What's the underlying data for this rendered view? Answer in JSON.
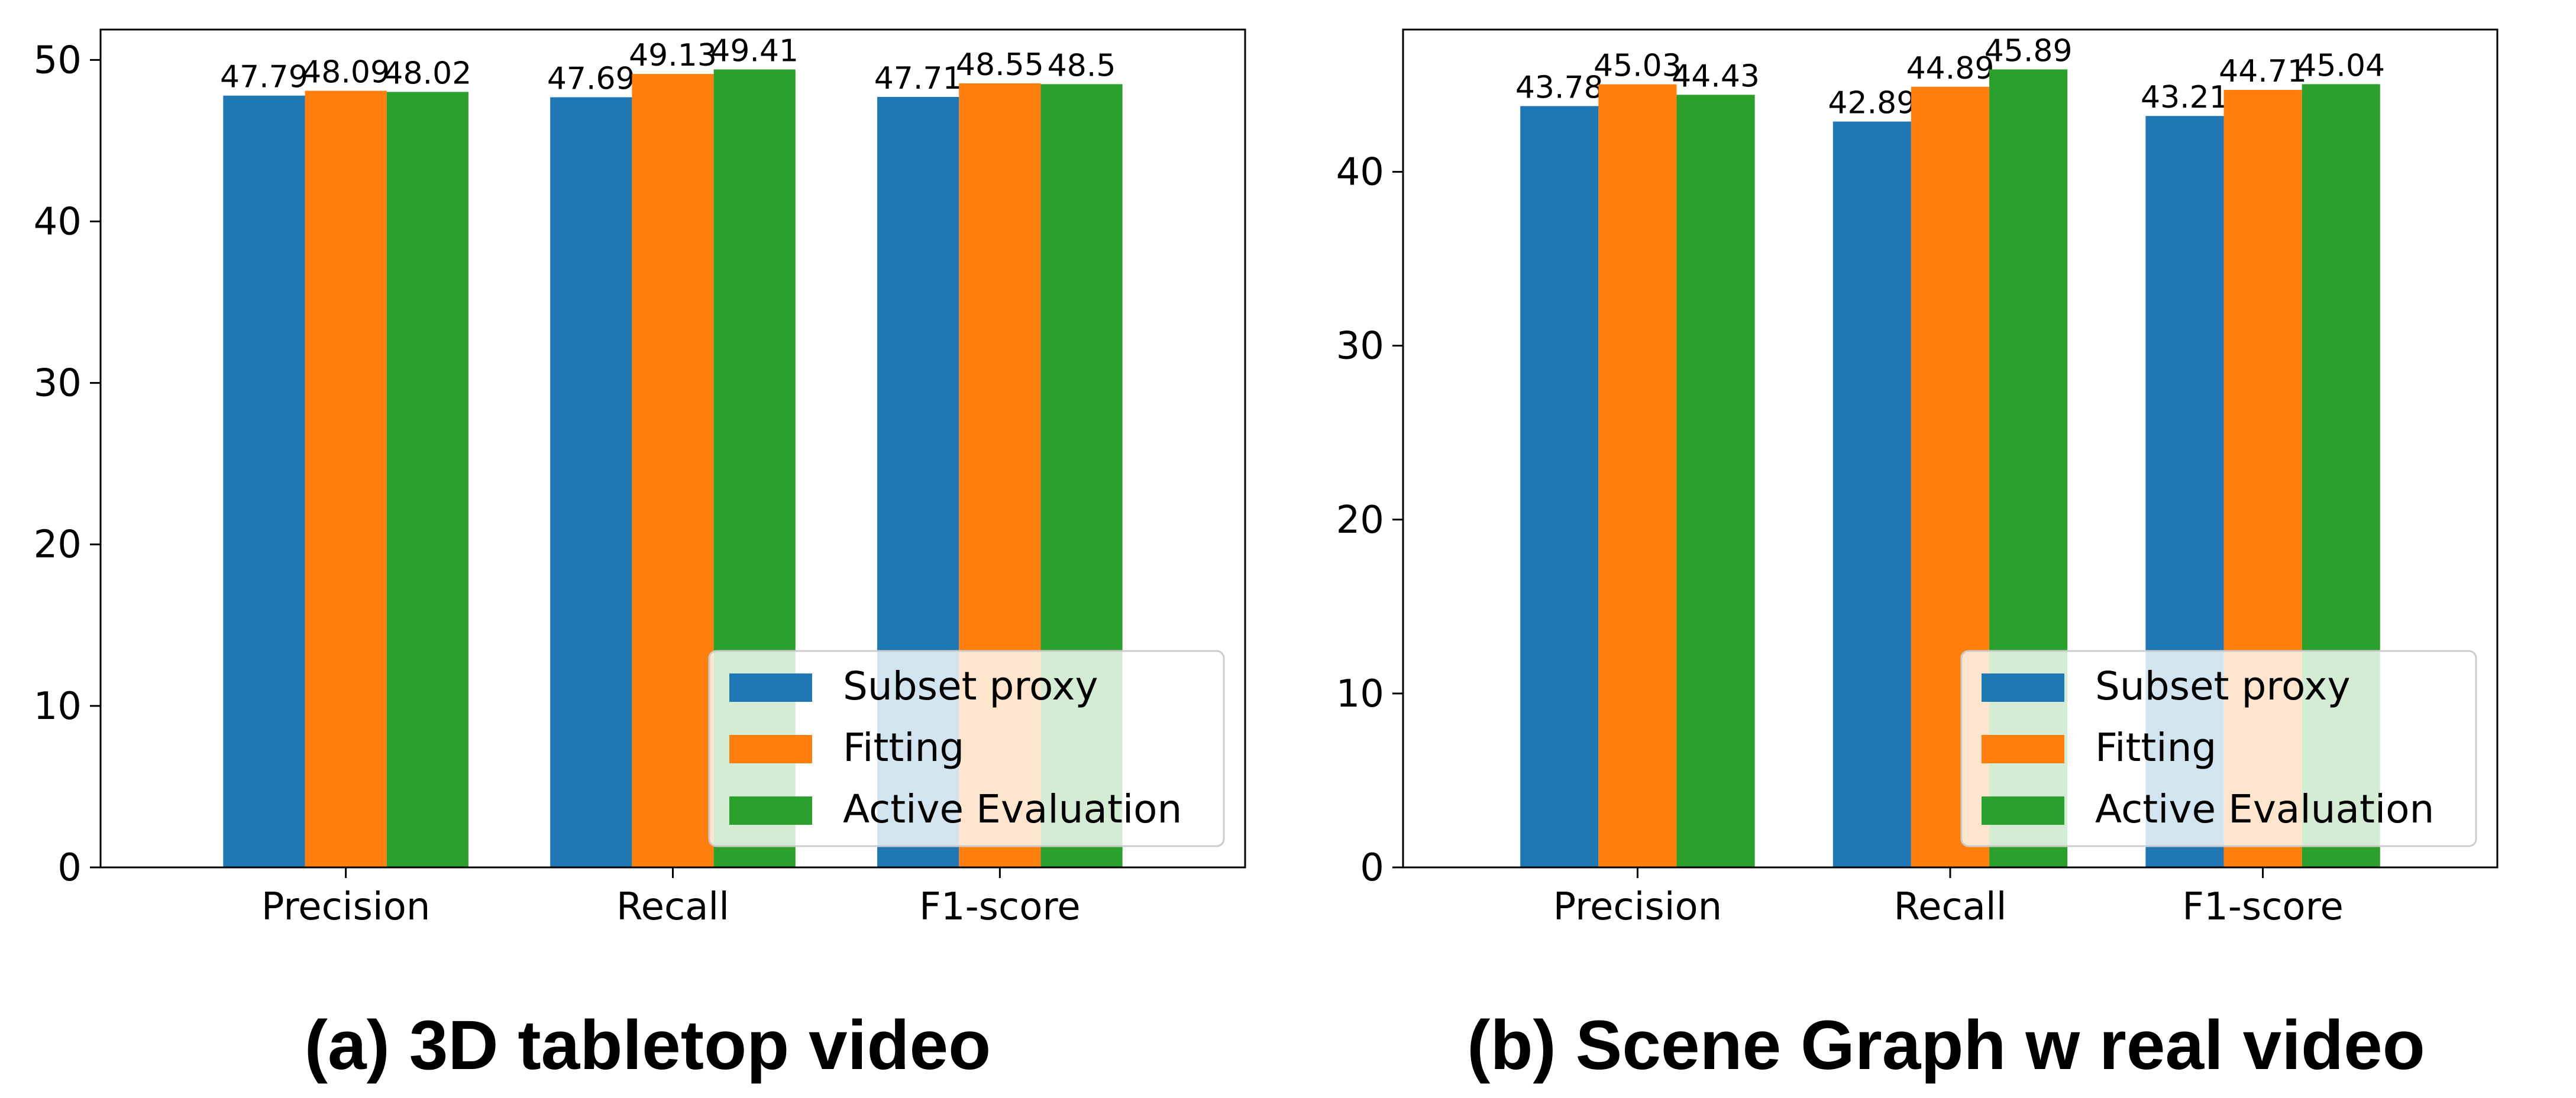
{
  "colors": {
    "Subset proxy": "#1f77b4",
    "Fitting": "#ff7f0e",
    "Active Evaluation": "#2ca02c"
  },
  "chart_data": [
    {
      "type": "bar",
      "caption": "(a) 3D tabletop video",
      "categories": [
        "Precision",
        "Recall",
        "F1-score"
      ],
      "series": [
        {
          "name": "Subset proxy",
          "values": [
            47.79,
            47.69,
            47.71
          ],
          "labels": [
            "47.79",
            "47.69",
            "47.71"
          ]
        },
        {
          "name": "Fitting",
          "values": [
            48.09,
            49.13,
            48.55
          ],
          "labels": [
            "48.09",
            "49.13",
            "48.55"
          ]
        },
        {
          "name": "Active Evaluation",
          "values": [
            48.02,
            49.41,
            48.5
          ],
          "labels": [
            "48.02",
            "49.41",
            "48.5"
          ]
        }
      ],
      "ylim": [
        0,
        51.88
      ],
      "yticks": [
        0,
        10,
        20,
        30,
        40,
        50
      ],
      "xlabel": "",
      "ylabel": "",
      "legend_location": "lower-right",
      "grid": false
    },
    {
      "type": "bar",
      "caption": "(b) Scene Graph w real video",
      "categories": [
        "Precision",
        "Recall",
        "F1-score"
      ],
      "series": [
        {
          "name": "Subset proxy",
          "values": [
            43.78,
            42.89,
            43.21
          ],
          "labels": [
            "43.78",
            "42.89",
            "43.21"
          ]
        },
        {
          "name": "Fitting",
          "values": [
            45.03,
            44.89,
            44.71
          ],
          "labels": [
            "45.03",
            "44.89",
            "44.71"
          ]
        },
        {
          "name": "Active Evaluation",
          "values": [
            44.43,
            45.89,
            45.04
          ],
          "labels": [
            "44.43",
            "45.89",
            "45.04"
          ]
        }
      ],
      "ylim": [
        0,
        48.18
      ],
      "yticks": [
        0,
        10,
        20,
        30,
        40
      ],
      "xlabel": "",
      "ylabel": "",
      "legend_location": "lower-right",
      "grid": false
    }
  ]
}
